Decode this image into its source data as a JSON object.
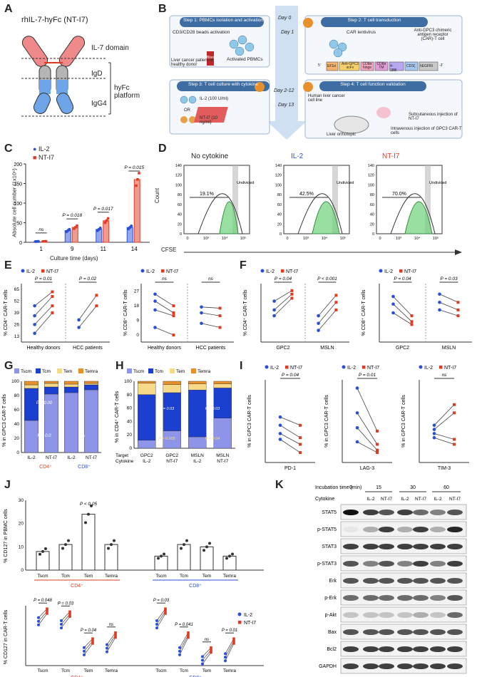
{
  "panels": {
    "A": {
      "letter": "A",
      "title": "rhIL-7-hyFc (NT-I7)",
      "il7_domain": "IL-7 domain",
      "igd": "IgD",
      "igg4": "IgG4",
      "platform": "hyFc platform"
    },
    "B": {
      "letter": "B",
      "step1": "Step 1: PBMCs isolation and activation",
      "step1_beads": "CD3/CD28 beads activation",
      "step1_source": "Liver cancer patient or healthy donor",
      "step1_blood": "Blood",
      "step1_result": "Activated PBMCs",
      "step2": "Step 2: T cell transduction",
      "step2_virus": "CAR lentivirus",
      "step2_car": "Anti-GPC3 chimeric antigen receptor (CAR)-T cell",
      "construct": [
        "5'",
        "EF1α",
        "Anti-GPC3 scFv",
        "CD8α hinge",
        "CD8α TM",
        "4-1BB",
        "CD3ζ",
        "hEGFRt",
        "-3'"
      ],
      "step3": "Step 3: T cell culture with cytokine",
      "step3_il2": "IL-2 (100 U/ml)",
      "step3_or": "OR",
      "step3_nti7": "NT-I7 (10 ng/ml)",
      "step4": "Step 4: T cell function validation",
      "step4_line": "Human liver cancer cell line",
      "step4_subq": "Subcutaneous injection of NT-I7",
      "step4_iv": "Intravenous injection of GPC3 CAR-T cells",
      "step4_ortho": "Liver orthotopic",
      "days": [
        "Day 0",
        "Day 1",
        "Day 2-12",
        "Day 13"
      ]
    },
    "C": {
      "letter": "C",
      "ylabel": "Absolute cell number (1x10⁵)",
      "xlabel": "Culture time (days)",
      "pvals": [
        "ns",
        "P = 0.018",
        "P = 0.017",
        "P = 0.015"
      ]
    },
    "D": {
      "letter": "D",
      "titles": [
        "No cytokine",
        "IL-2",
        "NT-I7"
      ],
      "pcts": [
        "19.1%",
        "42.5%",
        "70.0%"
      ],
      "undivided": "Undivided",
      "ylabel": "Count",
      "xlabel": "CFSE",
      "ticks": [
        "0",
        "10³",
        "10⁴",
        "10⁵"
      ],
      "yticks": [
        "0",
        "20",
        "40",
        "60",
        "80",
        "100",
        "120",
        "140"
      ]
    },
    "E": {
      "letter": "E",
      "left_ylabel": "% CD4⁺ CAR-T cells",
      "right_ylabel": "% CD8⁺ CAR-T cells",
      "groups": [
        "Healthy donors",
        "HCC patients"
      ],
      "left_p": [
        "P = 0.01",
        "P = 0.02"
      ],
      "right_p": [
        "ns",
        "ns"
      ],
      "left_yticks": [
        "13",
        "26",
        "39",
        "52",
        "65"
      ],
      "right_yticks": [
        "0",
        "9",
        "18",
        "27"
      ]
    },
    "F": {
      "letter": "F",
      "left_ylabel": "% CD4⁺ CAR-T cells",
      "right_ylabel": "% CD8⁺ CAR-T cells",
      "groups": [
        "GPC2",
        "MSLN"
      ],
      "left_p": [
        "P = 0.04",
        "P < 0.001"
      ],
      "right_p": [
        "P = 0.04",
        "P = 0.03"
      ]
    },
    "G": {
      "letter": "G",
      "ylabel": "% in GPC3 CAR-T cells",
      "bars": [
        "IL-2",
        "NT-I7",
        "IL-2",
        "NT-I7"
      ],
      "groups": [
        "CD4⁺",
        "CD8⁺"
      ],
      "p": [
        "P = 0.00",
        "P = 0.0",
        "ns"
      ]
    },
    "H": {
      "letter": "H",
      "ylabel": "% in CD4⁺ CAR-T cells",
      "target_label": "Target",
      "cytokine_label": "Cytokine",
      "targets": [
        "GPC2",
        "GPC2",
        "MSLN",
        "MSLN"
      ],
      "cytokines": [
        "IL-2",
        "NT-I7",
        "IL-2",
        "NT-I7"
      ],
      "p": [
        "P = 0.03",
        "P = 0.005",
        "P = 0.03",
        "P = 0.04"
      ]
    },
    "I": {
      "letter": "I",
      "ylabel": "% in GPC3 CAR-T cells",
      "markers": [
        "PD-1",
        "LAG-3",
        "TIM-3"
      ],
      "p": [
        "P = 0.04",
        "P = 0.01",
        "ns"
      ]
    },
    "J": {
      "letter": "J",
      "top_ylabel": "% CD127 in PBMC cells",
      "bottom_ylabel": "% CD127 in CAR-T cells",
      "top_p": "P < 0.05",
      "subsets": [
        "Tscm",
        "Tcm",
        "Tem",
        "Temra"
      ],
      "groups": [
        "CD4⁺",
        "CD8⁺"
      ],
      "bottom_p_cd4": [
        "P = 0.048",
        "P = 0.03",
        "P = 0.04",
        "ns"
      ],
      "bottom_p_cd8": [
        "P = 0.03",
        "P = 0.041",
        "ns",
        "P = 0.01"
      ]
    },
    "K": {
      "letter": "K",
      "incubation_label": "Incubation time (min)",
      "cytokine_label": "Cytokine",
      "times": [
        "0",
        "15",
        "30",
        "60"
      ],
      "lane_cytokines": [
        "IL-2",
        "NT-I7",
        "IL-2",
        "NT-I7",
        "IL-2",
        "NT-I7"
      ],
      "proteins": [
        "STAT5",
        "p-STAT5",
        "STAT3",
        "p-STAT3",
        "Erk",
        "p-Erk",
        "p-Akt",
        "Bax",
        "Bcl2",
        "GAPDH"
      ]
    }
  },
  "legend": {
    "il2": "IL-2",
    "nti7": "NT-I7",
    "tscm": "Tscm",
    "tcm": "Tcm",
    "tem": "Tem",
    "temra": "Temra"
  },
  "colors": {
    "il2": "#2a4fd6",
    "nti7": "#e03a22",
    "tscm": "#8e95e8",
    "tcm": "#1b3fd0",
    "tem": "#f7d98a",
    "temra": "#e8902c"
  },
  "chart_data": [
    {
      "panel": "C",
      "type": "bar",
      "categories": [
        "1",
        "9",
        "11",
        "14"
      ],
      "series": [
        {
          "name": "IL-2",
          "values": [
            2,
            30,
            33,
            38
          ]
        },
        {
          "name": "NT-I7",
          "values": [
            2,
            38,
            55,
            160
          ]
        }
      ],
      "xlabel": "Culture time (days)",
      "ylabel": "Absolute cell number (1x10⁵)",
      "ylim": [
        0,
        200
      ]
    },
    {
      "panel": "G",
      "type": "bar",
      "categories": [
        "CD4 IL-2",
        "CD4 NT-I7",
        "CD8 IL-2",
        "CD8 NT-I7"
      ],
      "series": [
        {
          "name": "Tscm",
          "values": [
            45,
            82,
            84,
            88
          ]
        },
        {
          "name": "Tcm",
          "values": [
            45,
            10,
            8,
            7
          ]
        },
        {
          "name": "Tem",
          "values": [
            5,
            5,
            4,
            2
          ]
        },
        {
          "name": "Temra",
          "values": [
            5,
            3,
            4,
            3
          ]
        }
      ],
      "ylim": [
        0,
        100
      ]
    },
    {
      "panel": "H",
      "type": "bar",
      "categories": [
        "GPC2 IL-2",
        "GPC2 NT-I7",
        "MSLN IL-2",
        "MSLN NT-I7"
      ],
      "series": [
        {
          "name": "Tscm",
          "values": [
            12,
            26,
            17,
            45
          ]
        },
        {
          "name": "Tcm",
          "values": [
            68,
            57,
            70,
            45
          ]
        },
        {
          "name": "Tem",
          "values": [
            17,
            12,
            9,
            6
          ]
        },
        {
          "name": "Temra",
          "values": [
            3,
            5,
            4,
            4
          ]
        }
      ],
      "ylim": [
        0,
        100
      ]
    },
    {
      "panel": "J-top",
      "type": "bar",
      "categories": [
        "CD4 Tscm",
        "CD4 Tcm",
        "CD4 Tem",
        "CD4 Temra",
        "CD8 Tscm",
        "CD8 Tcm",
        "CD8 Tem",
        "CD8 Temra"
      ],
      "values": [
        8,
        11,
        24,
        11,
        6,
        11,
        10,
        6
      ],
      "ylim": [
        0,
        30
      ]
    }
  ]
}
